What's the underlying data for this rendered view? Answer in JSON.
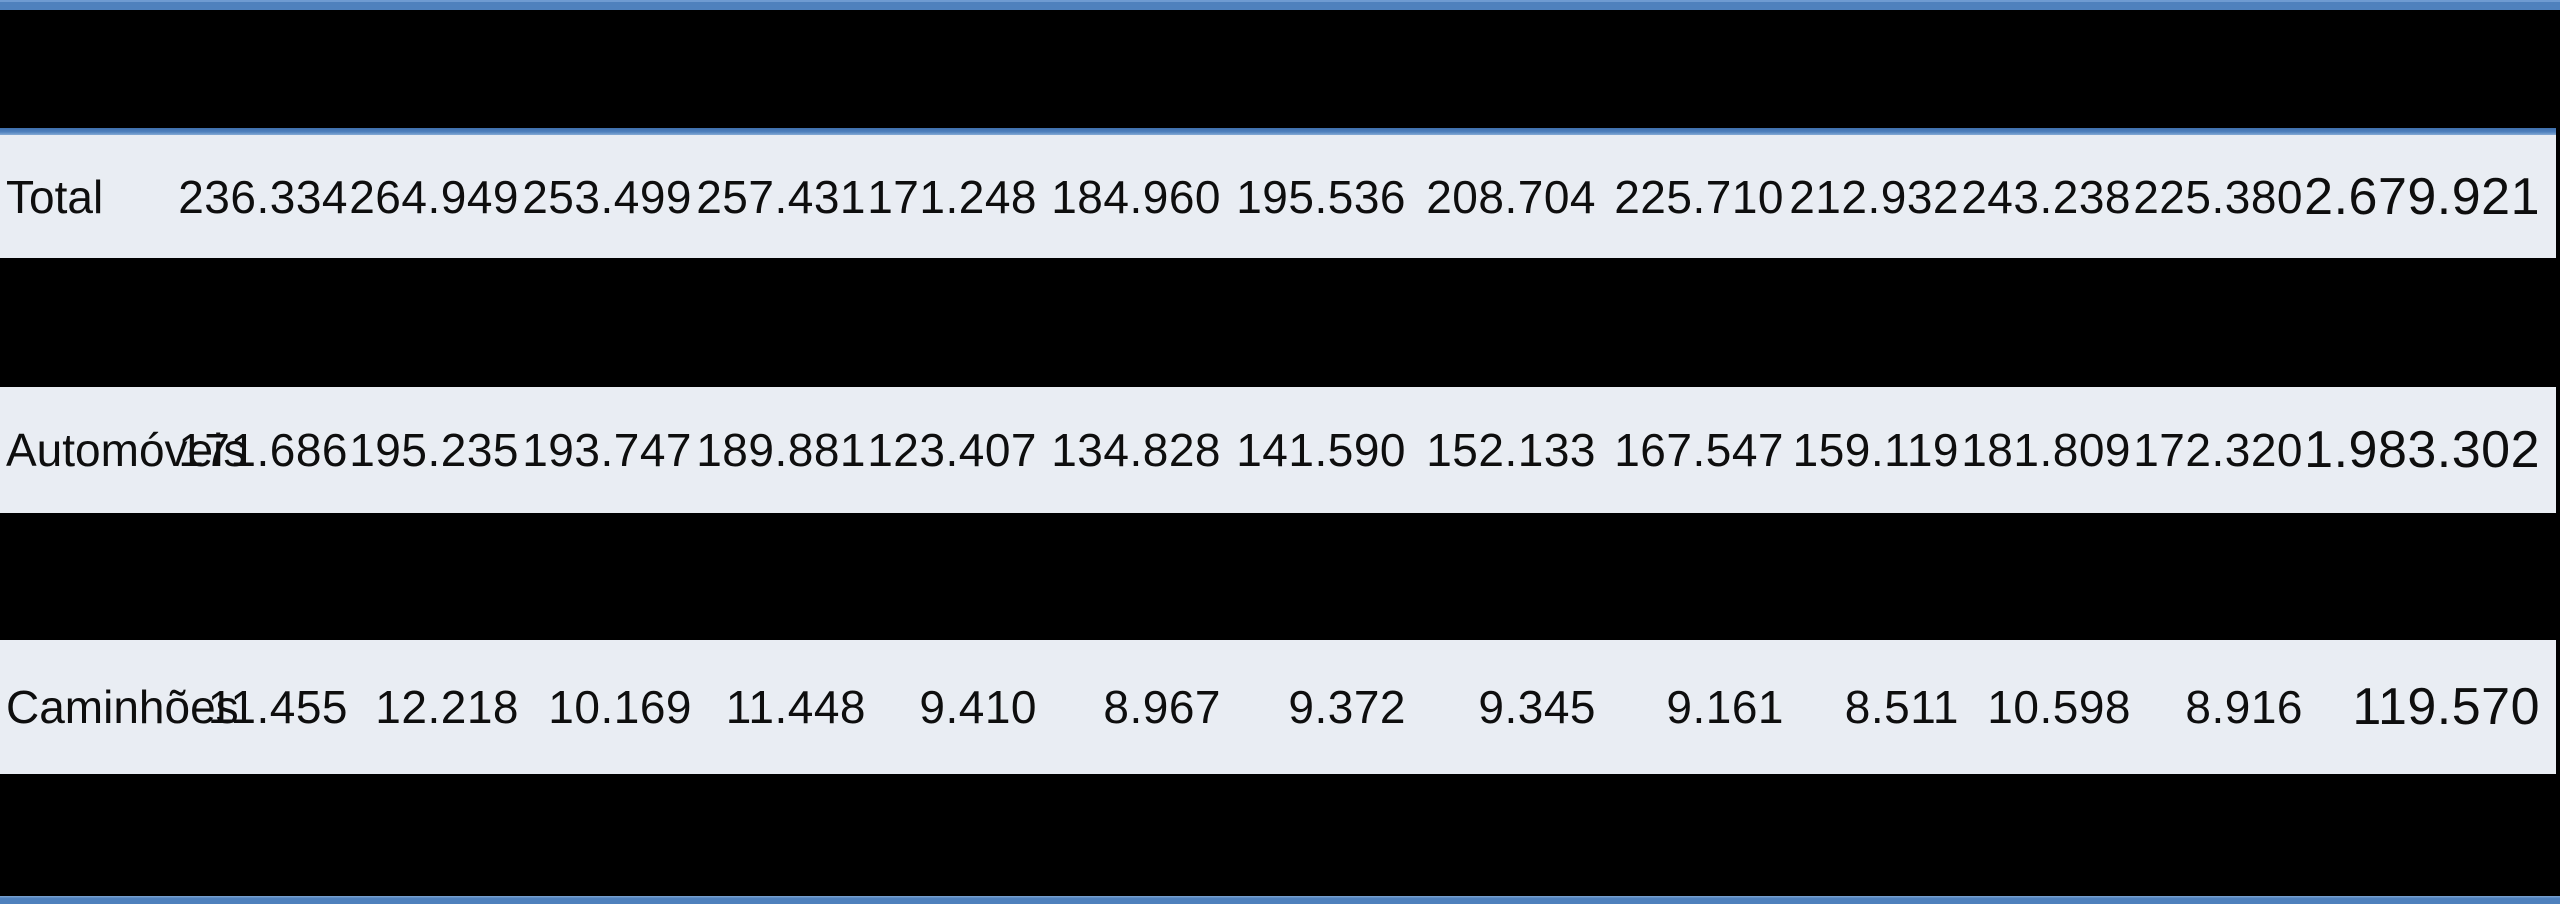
{
  "colors": {
    "accent_blue": "#4f81bd",
    "row_background": "#e9edf3",
    "redacted_band": "#000000",
    "text": "#0e0e0e"
  },
  "table": {
    "rows": [
      {
        "label": "Total",
        "values": [
          "236.334",
          "264.949",
          "253.499",
          "257.431",
          "171.248",
          "184.960",
          "195.536",
          "208.704",
          "225.710",
          "212.932",
          "243.238",
          "225.380"
        ],
        "total": "2.679.921"
      },
      {
        "label": "Automóveis",
        "values": [
          "171.686",
          "195.235",
          "193.747",
          "189.881",
          "123.407",
          "134.828",
          "141.590",
          "152.133",
          "167.547",
          "159.119",
          "181.809",
          "172.320"
        ],
        "total": "1.983.302"
      },
      {
        "label": "Caminhões",
        "values": [
          "11.455",
          "12.218",
          "10.169",
          "11.448",
          "9.410",
          "8.967",
          "9.372",
          "9.345",
          "9.161",
          "8.511",
          "10.598",
          "8.916"
        ],
        "total": "119.570"
      }
    ]
  }
}
